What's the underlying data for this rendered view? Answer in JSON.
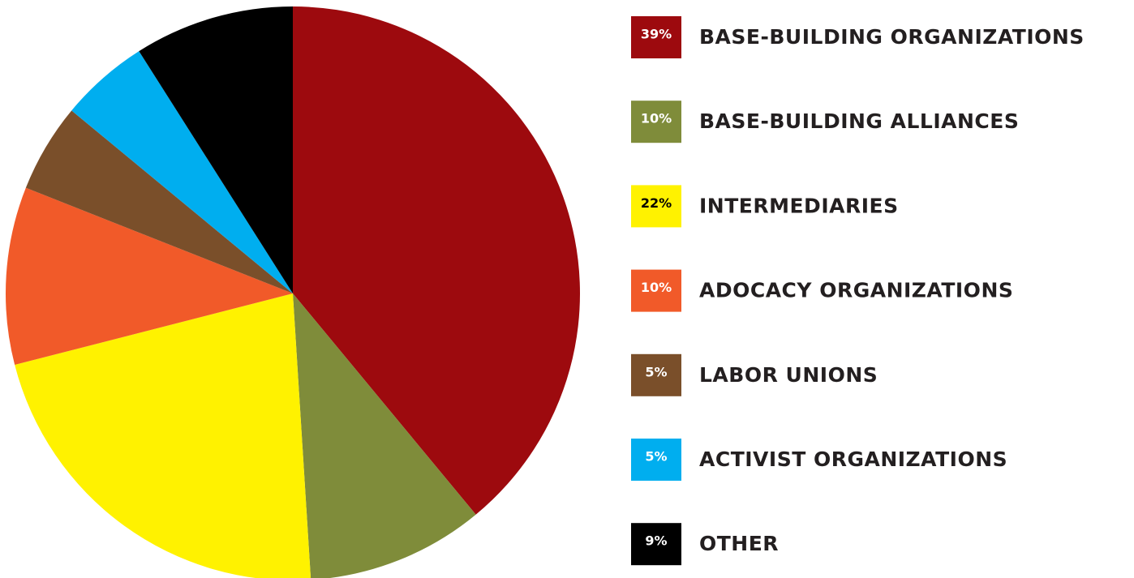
{
  "chart_data": {
    "type": "pie",
    "categories": [
      "BASE-BUILDING ORGANIZATIONS",
      "BASE-BUILDING ALLIANCES",
      "INTERMEDIARIES",
      "ADOCACY ORGANIZATIONS",
      "LABOR UNIONS",
      "ACTIVIST ORGANIZATIONS",
      "OTHER"
    ],
    "values": [
      39,
      10,
      22,
      10,
      5,
      5,
      9
    ],
    "value_labels": [
      "39%",
      "10%",
      "22%",
      "10%",
      "5%",
      "5%",
      "9%"
    ],
    "colors": [
      "#9d0a0e",
      "#7f8c3a",
      "#fff200",
      "#f15a29",
      "#7a4f2a",
      "#00aeef",
      "#000000"
    ]
  }
}
